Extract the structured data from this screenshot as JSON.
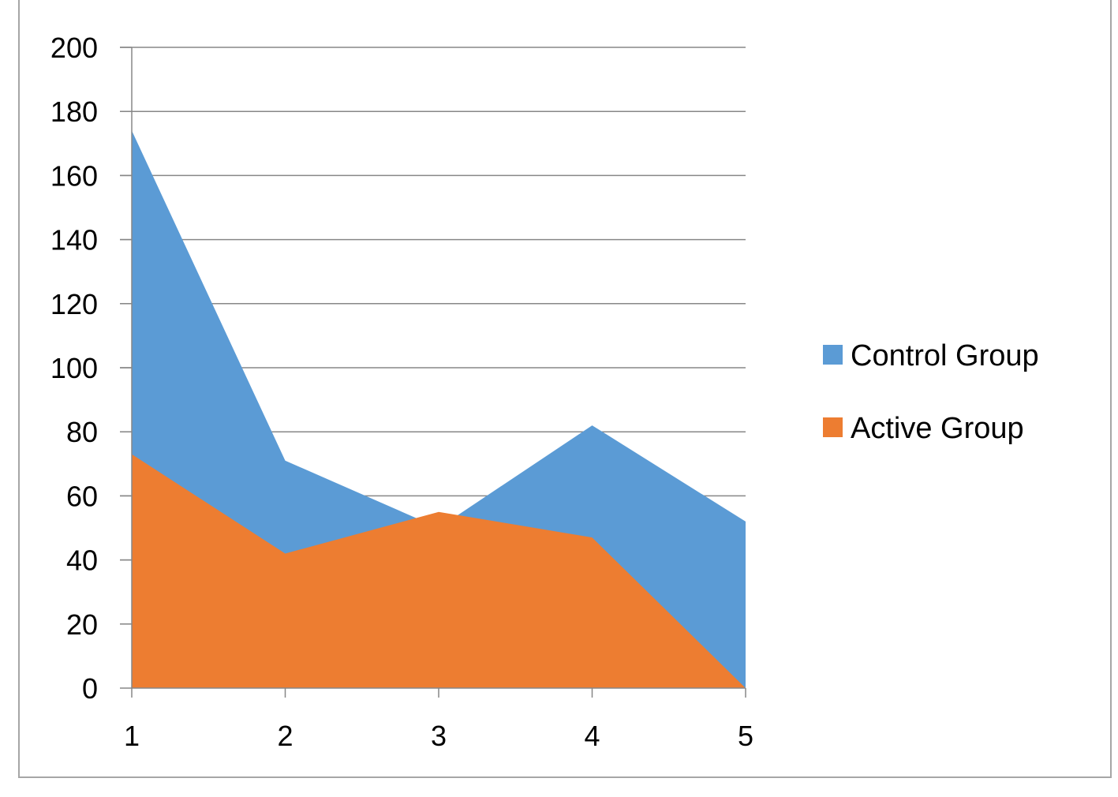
{
  "chart_data": {
    "type": "area",
    "categories": [
      "1",
      "2",
      "3",
      "4",
      "5"
    ],
    "series": [
      {
        "name": "Control Group",
        "values": [
          174,
          71,
          50,
          82,
          52
        ],
        "color": "#5b9bd5"
      },
      {
        "name": "Active Group",
        "values": [
          73,
          42,
          55,
          47,
          0
        ],
        "color": "#ed7d31"
      }
    ],
    "ylim": [
      0,
      200
    ],
    "yticks": [
      0,
      20,
      40,
      60,
      80,
      100,
      120,
      140,
      160,
      180,
      200
    ],
    "grid": true,
    "legend_position": "right",
    "title": "",
    "xlabel": "",
    "ylabel": ""
  }
}
